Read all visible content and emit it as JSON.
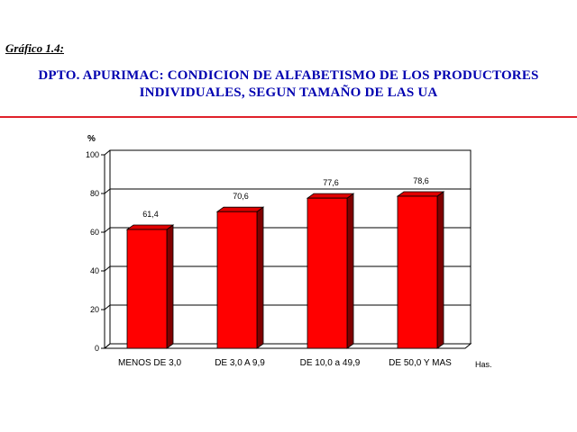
{
  "header": {
    "figure_label": "Gráfico 1.4:",
    "title_line1": "DPTO. APURIMAC: CONDICION DE ALFABETISMO DE LOS PRODUCTORES",
    "title_line2": "INDIVIDUALES, SEGUN TAMAÑO DE LAS UA"
  },
  "colors": {
    "title": "#0000b0",
    "divider": "#e0202a",
    "bar_front": "#ff0000",
    "bar_top": "#e00000",
    "bar_side": "#800000"
  },
  "chart_data": {
    "type": "bar",
    "title": "DPTO. APURIMAC: CONDICION DE ALFABETISMO DE LOS PRODUCTORES INDIVIDUALES, SEGUN TAMAÑO DE LAS UA",
    "ylabel": "%",
    "xlabel": "Has.",
    "ylim": [
      0,
      100
    ],
    "yticks": [
      0,
      20,
      40,
      60,
      80,
      100
    ],
    "categories": [
      "MENOS DE 3,0",
      "DE 3,0 A 9,9",
      "DE 10,0 a 49,9",
      "DE 50,0 Y MAS"
    ],
    "values": [
      61.4,
      70.6,
      77.6,
      78.6
    ],
    "value_labels": [
      "61,4",
      "70,6",
      "77,6",
      "78,6"
    ],
    "grid": true,
    "legend": "none",
    "style": "3d"
  }
}
